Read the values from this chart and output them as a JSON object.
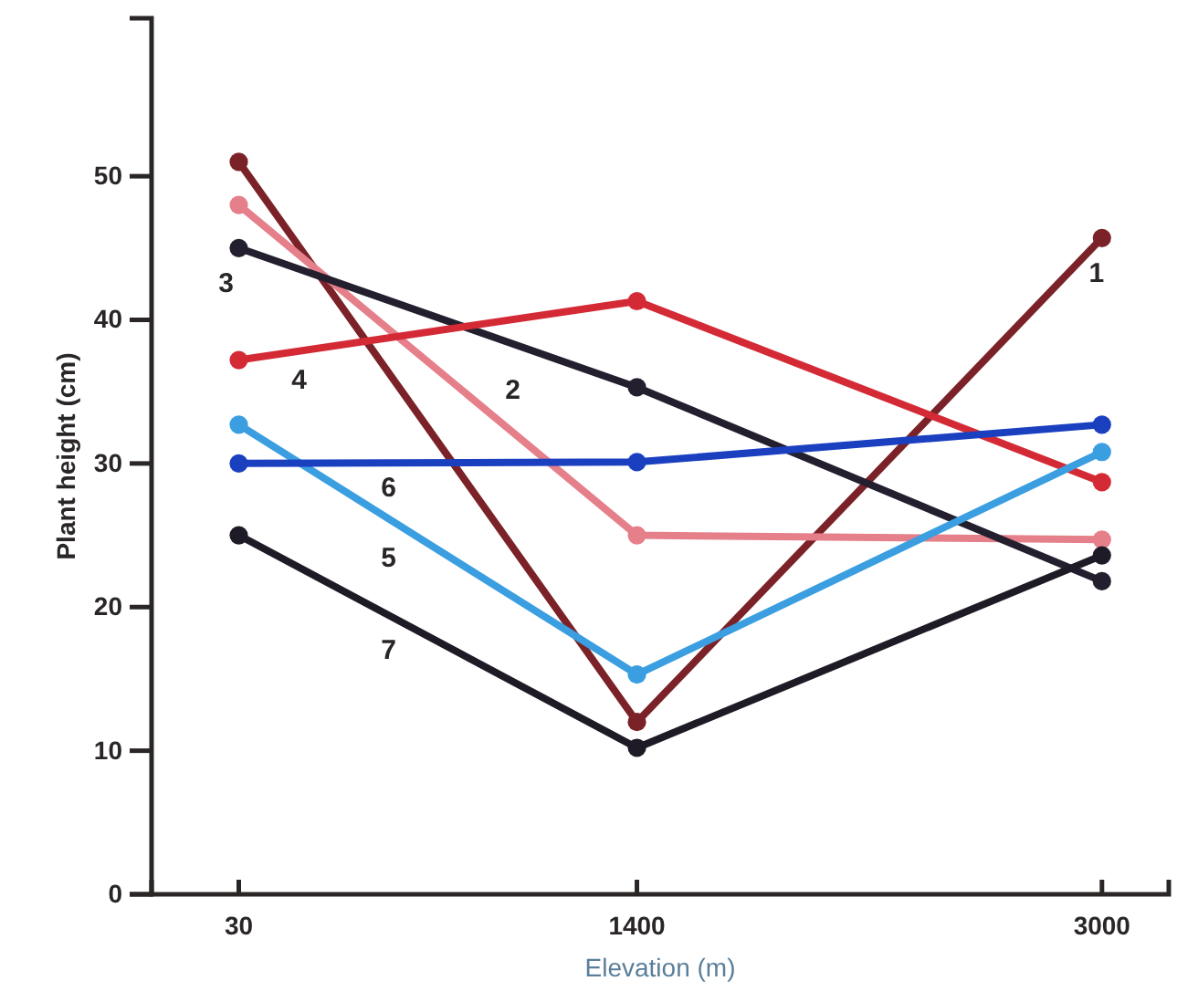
{
  "chart_data": {
    "type": "line",
    "xlabel": "Elevation (m)",
    "ylabel": "Plant height (cm)",
    "x": [
      30,
      1400,
      3000
    ],
    "xlim": [
      -270,
      3230
    ],
    "xticks": [
      30,
      1400,
      3000
    ],
    "ylim": [
      0,
      61
    ],
    "yticks": [
      0,
      10,
      20,
      30,
      40,
      50
    ],
    "grid": false,
    "marker": "circle",
    "line_style": "solid",
    "series": [
      {
        "name": "1",
        "color": "#7b2228",
        "values": [
          51,
          12,
          45.7
        ]
      },
      {
        "name": "2",
        "color": "#e57f8a",
        "values": [
          48,
          25,
          24.7
        ]
      },
      {
        "name": "3",
        "color": "#231f2e",
        "values": [
          45,
          35.3,
          21.8
        ]
      },
      {
        "name": "4",
        "color": "#d42a35",
        "values": [
          37.2,
          41.3,
          28.7
        ]
      },
      {
        "name": "5",
        "color": "#3a9ee0",
        "values": [
          32.7,
          15.3,
          30.8
        ]
      },
      {
        "name": "6",
        "color": "#1a3fbf",
        "values": [
          30,
          30.1,
          32.7
        ]
      },
      {
        "name": "7",
        "color": "#1e1b26",
        "values": [
          25,
          10.2,
          23.6
        ]
      }
    ]
  }
}
